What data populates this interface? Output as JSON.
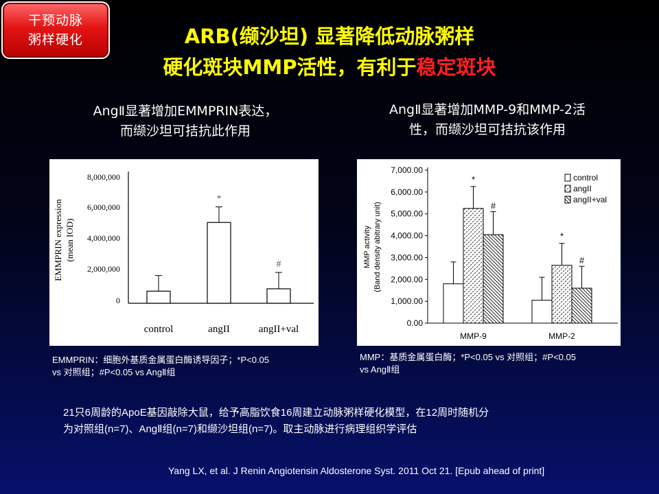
{
  "badge": {
    "line1": "干预动脉",
    "line2": "粥样硬化"
  },
  "title": {
    "line1": "ARB(缬沙坦) 显著降低动脉粥样",
    "line2_main": "硬化斑块MMP活性，有利于",
    "line2_red": "稳定斑块"
  },
  "left_subtitle": {
    "line1": "AngⅡ显著增加EMMPRIN表达，",
    "line2": "而缬沙坦可拮抗此作用"
  },
  "right_subtitle": {
    "line1": "AngⅡ显著增加MMP-9和MMP-2活",
    "line2": "性，而缬沙坦可拮抗该作用"
  },
  "left_caption": {
    "line1": "EMMPRIN：细胞外基质金属蛋白酶诱导因子；*P<0.05",
    "line2": "vs 对照组；#P<0.05 vs AngⅡ组"
  },
  "right_caption": {
    "line1": "MMP：基质金属蛋白酶；*P<0.05 vs 对照组；#P<0.05",
    "line2": "vs AngⅡ组"
  },
  "paragraph": {
    "line1": "21只6周龄的ApoE基因敲除大鼠，给予高脂饮食16周建立动脉粥样硬化模型，在12周时随机分",
    "line2": "为对照组(n=7)、AngⅡ组(n=7)和缬沙坦组(n=7)。取主动脉进行病理组织学评估"
  },
  "reference": "Yang LX, et al. J Renin Angiotensin Aldosterone Syst. 2011 Oct 21. [Epub ahead of print]",
  "colors": {
    "title": "#ffff00",
    "highlight": "#ff2020",
    "badge": "#e31414"
  },
  "chart_data": [
    {
      "type": "bar",
      "ylabel": "EMMPRIN expression (mean IOD)",
      "categories": [
        "control",
        "angII",
        "angII+val"
      ],
      "values": [
        600000,
        5000000,
        750000
      ],
      "errors": [
        1000000,
        1000000,
        1050000
      ],
      "markers": [
        "",
        "*",
        "#"
      ],
      "yticks": [
        "8,000,000",
        "6,000,000",
        "4,000,000",
        "2,000,000",
        "0"
      ],
      "ylim": [
        0,
        8000000
      ]
    },
    {
      "type": "bar",
      "ylabel": "MMP activity",
      "ylabel2": "(Band density abitrary unit)",
      "categories": [
        "MMP-9",
        "MMP-2"
      ],
      "series": [
        {
          "name": "control",
          "values": [
            1800,
            1050
          ],
          "errors": [
            1000,
            1050
          ],
          "markers": [
            "",
            ""
          ]
        },
        {
          "name": "angII",
          "values": [
            5250,
            2650
          ],
          "errors": [
            1000,
            1000
          ],
          "markers": [
            "*",
            "*"
          ]
        },
        {
          "name": "angII+val",
          "values": [
            4050,
            1600
          ],
          "errors": [
            1050,
            1000
          ],
          "markers": [
            "#",
            "#"
          ]
        }
      ],
      "yticks": [
        "7,000.00",
        "6,000.00",
        "5,000.00",
        "4,000.00",
        "3,000.00",
        "2,000.00",
        "1,000.00",
        "0.00"
      ],
      "ylim": [
        0,
        7000
      ]
    }
  ]
}
